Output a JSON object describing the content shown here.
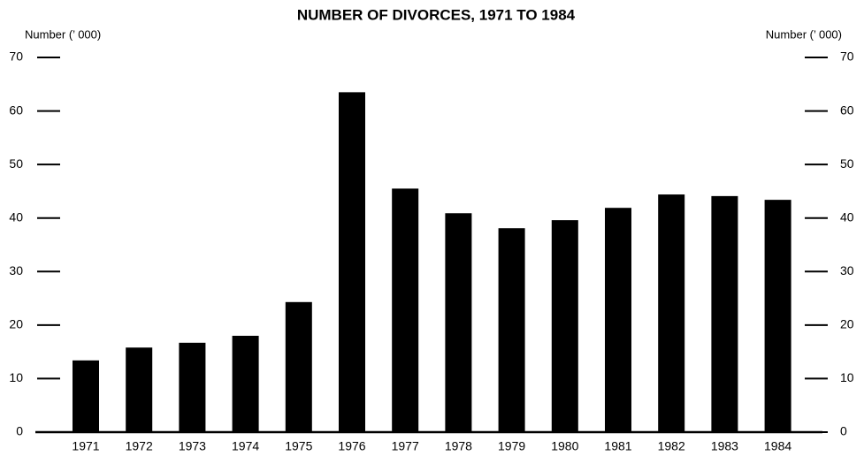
{
  "chart_data": {
    "type": "bar",
    "title": "NUMBER OF DIVORCES, 1971 TO 1984",
    "y_label": "Number (’ 000)",
    "y2_label": "Number (’ 000)",
    "categories": [
      "1971",
      "1972",
      "1973",
      "1974",
      "1975",
      "1976",
      "1977",
      "1978",
      "1979",
      "1980",
      "1981",
      "1982",
      "1983",
      "1984"
    ],
    "values": [
      13.4,
      15.8,
      16.7,
      18.0,
      24.3,
      63.5,
      45.5,
      40.9,
      38.1,
      39.6,
      41.9,
      44.4,
      44.1,
      43.4
    ],
    "color": "#000000",
    "ylim": [
      0,
      70
    ],
    "yticks": [
      0,
      10,
      20,
      30,
      40,
      50,
      60,
      70
    ],
    "y2lim": [
      0,
      70
    ],
    "y2ticks": [
      0,
      10,
      20,
      30,
      40,
      50,
      60,
      70
    ]
  }
}
